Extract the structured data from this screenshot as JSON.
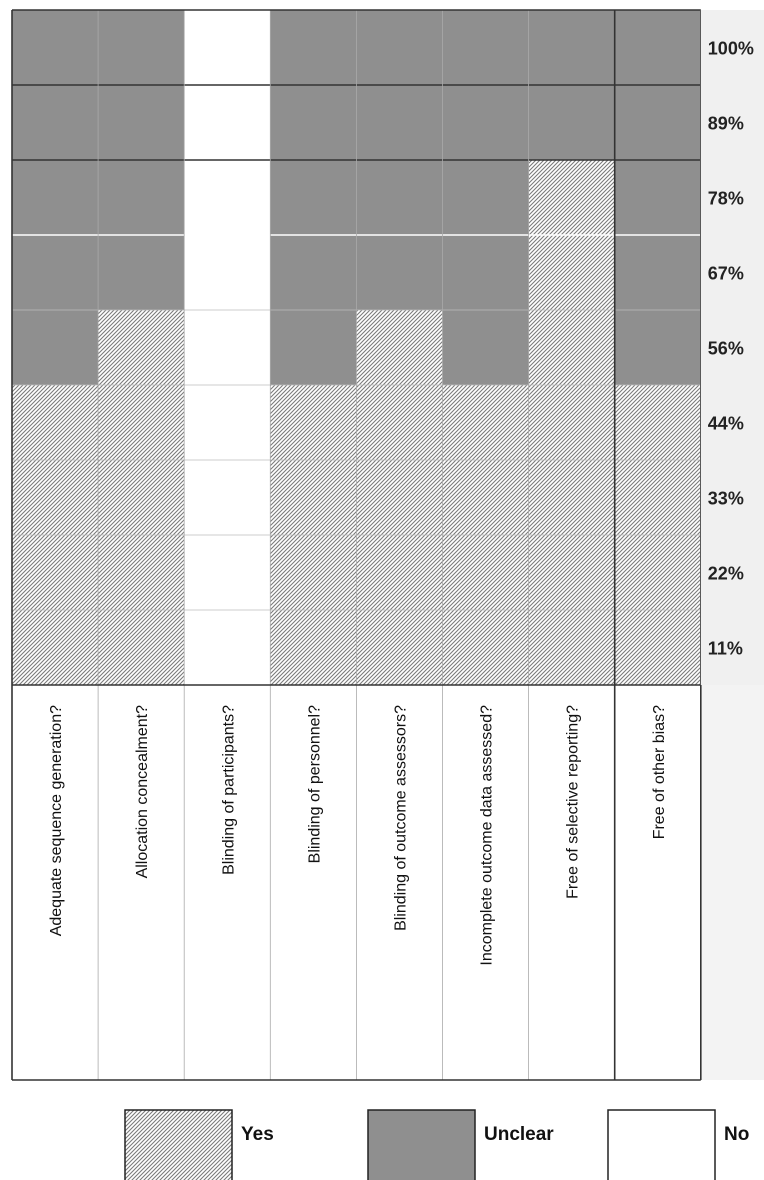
{
  "chart_data": {
    "type": "heatmap",
    "title": "",
    "xlabel": "",
    "ylabel": "",
    "categories": [
      "Adequate sequence generation?",
      "Allocation concealment?",
      "Blinding of participants?",
      "Blinding of personnel?",
      "Blinding of outcome assessors?",
      "Incomplete outcome data assessed?",
      "Free of selective reporting?",
      "Free of other bias?"
    ],
    "y_tick_labels": [
      "100%",
      "89%",
      "78%",
      "67%",
      "56%",
      "44%",
      "33%",
      "22%",
      "11%"
    ],
    "y_tick_values": [
      100,
      89,
      78,
      67,
      56,
      44,
      33,
      22,
      11
    ],
    "ylim": [
      0,
      100
    ],
    "n_rows": 9,
    "series": [
      {
        "name": "Yes",
        "values": [
          44.4,
          55.6,
          0,
          44.4,
          55.6,
          44.4,
          77.8,
          44.4
        ]
      },
      {
        "name": "Unclear",
        "values": [
          55.6,
          44.4,
          0,
          55.6,
          44.4,
          55.6,
          22.2,
          55.6
        ]
      },
      {
        "name": "No",
        "values": [
          0,
          0,
          100,
          0,
          0,
          0,
          0,
          0
        ]
      }
    ],
    "legend": {
      "position": "bottom",
      "entries": [
        {
          "label": "Yes",
          "pattern": "hatch"
        },
        {
          "label": "Unclear",
          "color": "#8f8f8f"
        },
        {
          "label": "No",
          "color": "#ffffff"
        }
      ]
    },
    "colors": {
      "yes_hatch": "#8f8f8f",
      "yes_bg": "#ffffff",
      "unclear": "#8f8f8f",
      "no": "#ffffff",
      "tick_panel": "#f0f0f0",
      "border": "#444444"
    }
  }
}
